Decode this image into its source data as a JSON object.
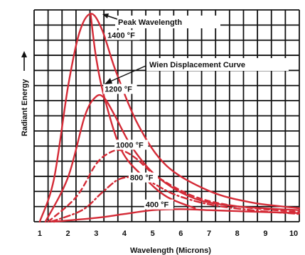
{
  "colors": {
    "curve": "#d42a36",
    "grid": "#111111",
    "text": "#111111",
    "background": "#ffffff"
  },
  "chart_data": {
    "type": "line",
    "title": "",
    "xlabel": "Wavelength (Microns)",
    "ylabel": "Radiant Energy",
    "xlim": [
      0.8,
      10.2
    ],
    "ylim": [
      0,
      11
    ],
    "xticks": [
      "1",
      "2",
      "3",
      "4",
      "5",
      "6",
      "7",
      "8",
      "9",
      "10"
    ],
    "grid": true,
    "annotations": [
      "Peak Wavelength",
      "Wien Displacement Curve"
    ],
    "series": [
      {
        "name": "1400 °F",
        "x": [
          1.0,
          1.5,
          2.0,
          2.4,
          2.8,
          3.2,
          3.7,
          4.5,
          5.5,
          7.0,
          8.5,
          10.2
        ],
        "y": [
          0.0,
          2.2,
          7.0,
          9.8,
          10.8,
          10.0,
          7.8,
          5.0,
          2.9,
          1.6,
          1.0,
          0.7
        ]
      },
      {
        "name": "1200 °F",
        "x": [
          1.2,
          2.0,
          2.6,
          3.0,
          3.3,
          3.7,
          4.3,
          5.2,
          6.5,
          8.0,
          10.2
        ],
        "y": [
          0.0,
          2.3,
          5.5,
          6.5,
          6.4,
          5.4,
          3.8,
          2.3,
          1.2,
          0.8,
          0.6
        ]
      },
      {
        "name": "1000 °F",
        "x": [
          1.3,
          2.3,
          3.0,
          3.5,
          3.9,
          4.4,
          5.2,
          6.5,
          8.0,
          10.2
        ],
        "y": [
          0.0,
          1.3,
          3.0,
          3.6,
          3.7,
          3.3,
          2.3,
          1.3,
          0.8,
          0.5
        ]
      },
      {
        "name": "800 °F",
        "x": [
          1.4,
          2.5,
          3.2,
          3.8,
          4.4,
          5.0,
          5.8,
          7.0,
          8.5,
          10.2
        ],
        "y": [
          0.0,
          0.6,
          1.5,
          2.2,
          2.3,
          2.0,
          1.4,
          0.9,
          0.6,
          0.4
        ]
      },
      {
        "name": "400 °F",
        "x": [
          1.5,
          3.0,
          4.0,
          5.0,
          6.0,
          7.0,
          8.0,
          9.0,
          10.2
        ],
        "y": [
          0.0,
          0.2,
          0.4,
          0.6,
          0.65,
          0.6,
          0.55,
          0.5,
          0.45
        ]
      }
    ],
    "wien_curve": {
      "x": [
        2.8,
        3.0,
        3.3,
        3.9,
        4.7,
        5.5,
        6.5
      ],
      "y": [
        10.8,
        8.5,
        6.4,
        3.7,
        2.3,
        1.3,
        0.7
      ]
    }
  }
}
